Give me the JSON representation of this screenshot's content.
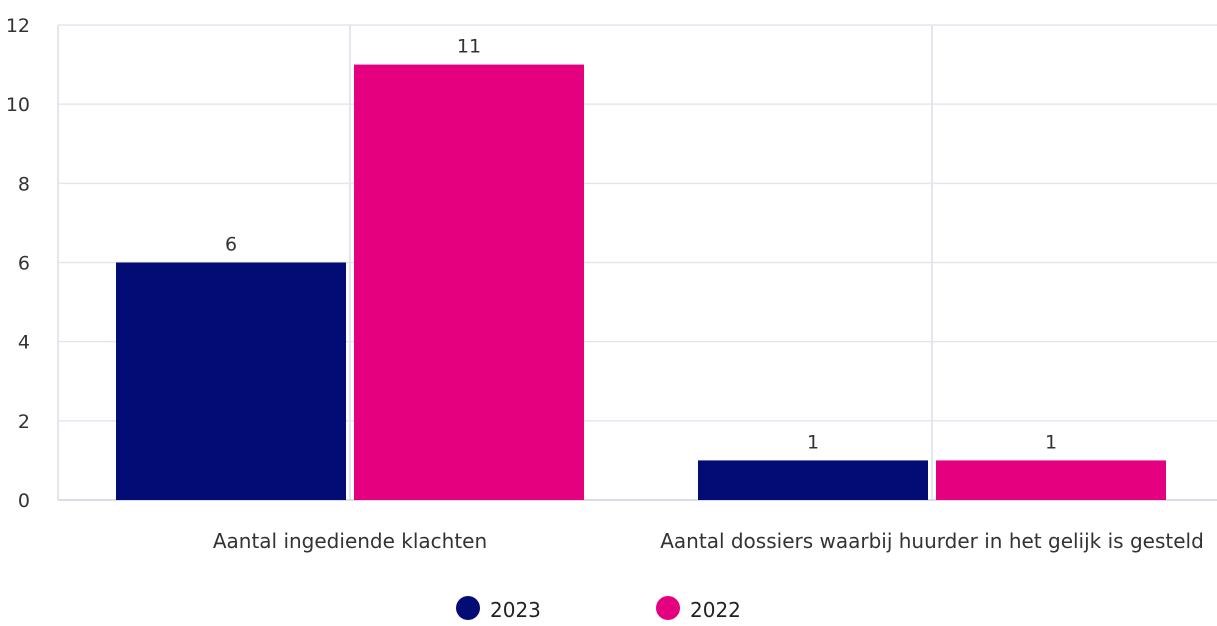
{
  "chart_data": {
    "type": "bar",
    "categories": [
      "Aantal ingediende klachten",
      "Aantal dossiers waarbij huurder in het gelijk is gesteld"
    ],
    "series": [
      {
        "name": "2023",
        "values": [
          6,
          1
        ],
        "color": "#020c74"
      },
      {
        "name": "2022",
        "values": [
          11,
          1
        ],
        "color": "#e4007f"
      }
    ],
    "yticks": [
      0,
      2,
      4,
      6,
      8,
      10,
      12
    ],
    "ylim": [
      0,
      12
    ],
    "title": "",
    "xlabel": "",
    "ylabel": "",
    "grid": true,
    "legend": "bottom-center"
  }
}
